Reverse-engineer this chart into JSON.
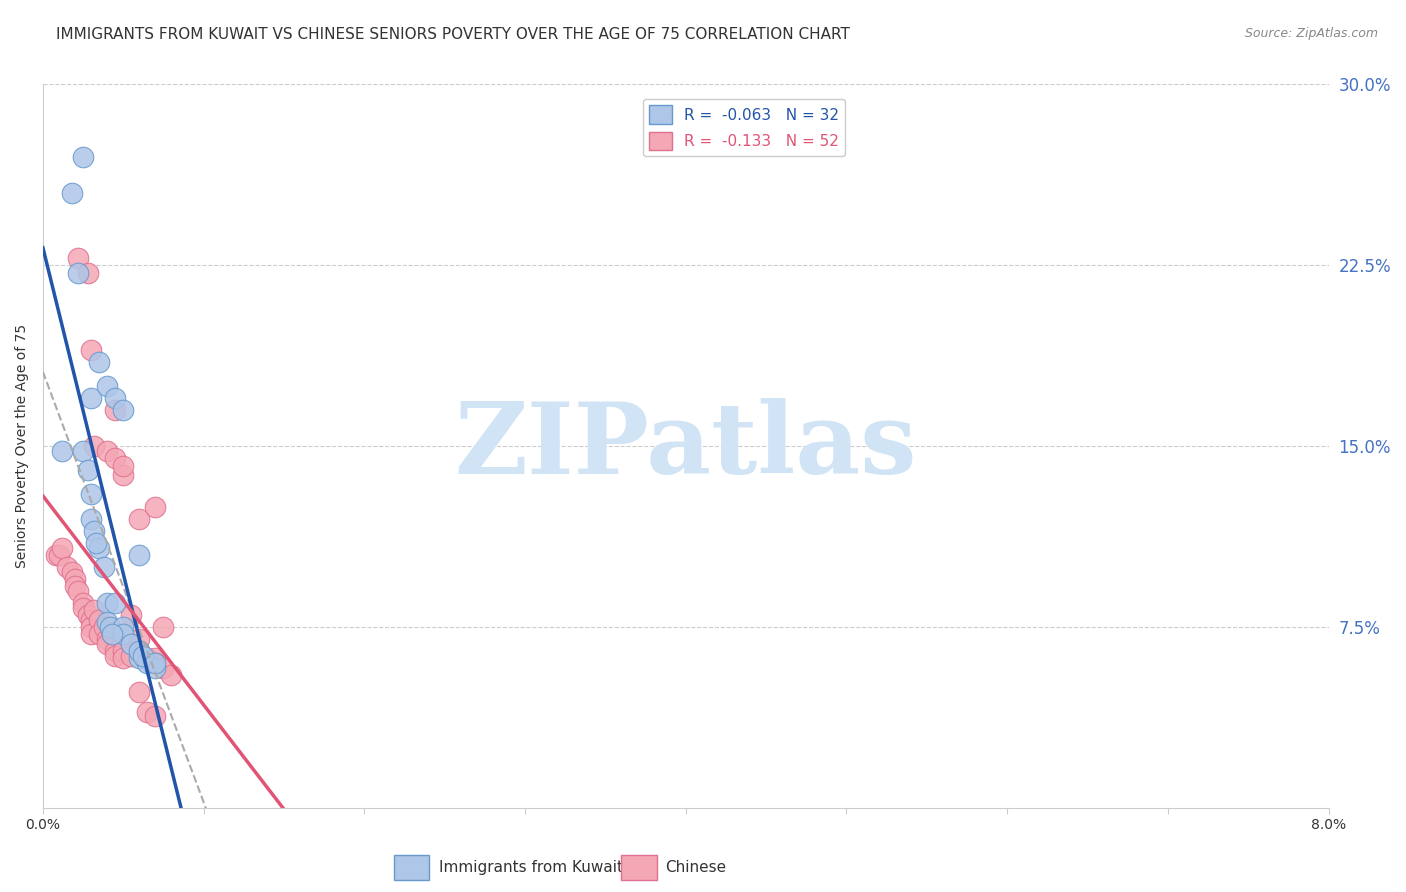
{
  "title": "IMMIGRANTS FROM KUWAIT VS CHINESE SENIORS POVERTY OVER THE AGE OF 75 CORRELATION CHART",
  "source": "Source: ZipAtlas.com",
  "ylabel": "Seniors Poverty Over the Age of 75",
  "xmin": 0.0,
  "xmax": 0.08,
  "ymin": 0.0,
  "ymax": 0.3,
  "xticks": [
    0.0,
    0.01,
    0.02,
    0.03,
    0.04,
    0.05,
    0.06,
    0.07,
    0.08
  ],
  "xtick_labels": [
    "0.0%",
    "",
    "",
    "",
    "",
    "",
    "",
    "",
    "8.0%"
  ],
  "yticks_right": [
    0.075,
    0.15,
    0.225,
    0.3
  ],
  "ytick_right_labels": [
    "7.5%",
    "15.0%",
    "22.5%",
    "30.0%"
  ],
  "right_axis_color": "#4472c4",
  "watermark_text": "ZIPatlas",
  "watermark_color": "#d0e4f5",
  "series_kuwait": {
    "color": "#aec6e8",
    "edge_color": "#6699cc",
    "line_color": "#2255aa",
    "x": [
      0.0012,
      0.0018,
      0.0025,
      0.0028,
      0.003,
      0.003,
      0.0032,
      0.0035,
      0.004,
      0.004,
      0.0042,
      0.0045,
      0.005,
      0.005,
      0.0055,
      0.006,
      0.006,
      0.0065,
      0.007,
      0.0025,
      0.003,
      0.0035,
      0.004,
      0.0045,
      0.005,
      0.006,
      0.0022,
      0.0033,
      0.0038,
      0.0043,
      0.0062,
      0.007
    ],
    "y": [
      0.148,
      0.255,
      0.148,
      0.14,
      0.12,
      0.13,
      0.115,
      0.108,
      0.085,
      0.077,
      0.075,
      0.085,
      0.075,
      0.072,
      0.068,
      0.062,
      0.065,
      0.06,
      0.058,
      0.27,
      0.17,
      0.185,
      0.175,
      0.17,
      0.165,
      0.105,
      0.222,
      0.11,
      0.1,
      0.072,
      0.063,
      0.06
    ]
  },
  "series_chinese": {
    "color": "#f4a7b4",
    "edge_color": "#e07090",
    "line_color": "#e05575",
    "x": [
      0.0008,
      0.001,
      0.0012,
      0.0015,
      0.0018,
      0.002,
      0.002,
      0.0022,
      0.0025,
      0.0025,
      0.0028,
      0.003,
      0.003,
      0.003,
      0.0032,
      0.0035,
      0.0035,
      0.0038,
      0.004,
      0.004,
      0.0042,
      0.0043,
      0.0045,
      0.0045,
      0.005,
      0.005,
      0.005,
      0.0055,
      0.0055,
      0.006,
      0.006,
      0.0065,
      0.007,
      0.007,
      0.0075,
      0.008,
      0.0022,
      0.0028,
      0.003,
      0.0032,
      0.004,
      0.0045,
      0.005,
      0.006,
      0.007,
      0.0045,
      0.005,
      0.0055,
      0.006,
      0.0065,
      0.007,
      0.0075
    ],
    "y": [
      0.105,
      0.105,
      0.108,
      0.1,
      0.098,
      0.095,
      0.092,
      0.09,
      0.085,
      0.083,
      0.08,
      0.078,
      0.075,
      0.072,
      0.082,
      0.078,
      0.072,
      0.075,
      0.07,
      0.068,
      0.075,
      0.072,
      0.065,
      0.063,
      0.072,
      0.065,
      0.062,
      0.08,
      0.068,
      0.07,
      0.065,
      0.062,
      0.062,
      0.06,
      0.058,
      0.055,
      0.228,
      0.222,
      0.19,
      0.15,
      0.148,
      0.145,
      0.138,
      0.12,
      0.125,
      0.165,
      0.142,
      0.063,
      0.048,
      0.04,
      0.038,
      0.075
    ]
  },
  "background_color": "#ffffff",
  "grid_color": "#cccccc",
  "title_fontsize": 11,
  "axis_label_fontsize": 10,
  "tick_fontsize": 10
}
